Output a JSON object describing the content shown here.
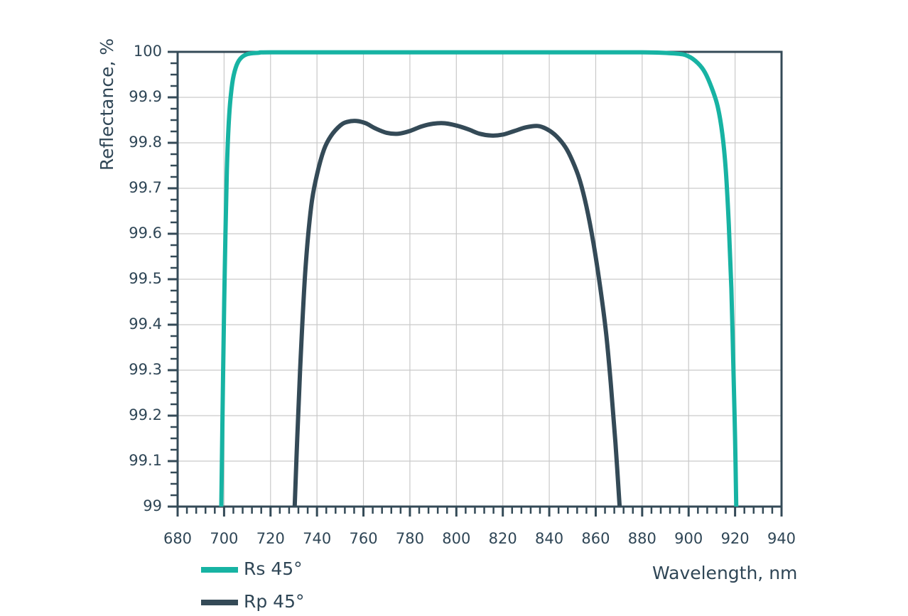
{
  "chart_data": {
    "type": "line",
    "xlabel": "Wavelength, nm",
    "ylabel": "Reflectance, %",
    "xlim": [
      680,
      940
    ],
    "xticks": [
      680,
      700,
      720,
      740,
      760,
      780,
      800,
      820,
      840,
      860,
      880,
      900,
      920,
      940
    ],
    "ylim": [
      99,
      100
    ],
    "yticks": [
      99,
      99.1,
      99.2,
      99.3,
      99.4,
      99.5,
      99.6,
      99.7,
      99.8,
      99.9,
      100
    ],
    "grid": true,
    "legend": "bottom-left",
    "series": [
      {
        "name": "Rs 45°",
        "color": "#17b3a3",
        "x": [
          698.8,
          699.6,
          700.3,
          701.2,
          702.2,
          703.5,
          705,
          707,
          710,
          715,
          720,
          760,
          800,
          840,
          880,
          895,
          900,
          904,
          907,
          910,
          912.5,
          914.5,
          916,
          917.3,
          918.4,
          919.3,
          920,
          920.5
        ],
        "values": [
          99,
          99.3,
          99.52,
          99.74,
          99.86,
          99.93,
          99.965,
          99.985,
          99.995,
          99.998,
          99.999,
          99.999,
          99.999,
          99.999,
          99.999,
          99.996,
          99.99,
          99.975,
          99.955,
          99.92,
          99.88,
          99.82,
          99.74,
          99.62,
          99.48,
          99.3,
          99.15,
          99
        ]
      },
      {
        "name": "Rp 45°",
        "color": "#344a57",
        "x": [
          730.4,
          731.5,
          733,
          735,
          737.5,
          740,
          743,
          746,
          750,
          753,
          757,
          761,
          765,
          770,
          775,
          780,
          785,
          790,
          795,
          800,
          805,
          810,
          815,
          820,
          825,
          830,
          835,
          839,
          843,
          847,
          850,
          853,
          856,
          859,
          862,
          864.5,
          866.5,
          868.5,
          870.3
        ],
        "values": [
          99,
          99.15,
          99.33,
          99.52,
          99.66,
          99.73,
          99.785,
          99.815,
          99.838,
          99.846,
          99.848,
          99.843,
          99.832,
          99.822,
          99.82,
          99.826,
          99.836,
          99.842,
          99.843,
          99.838,
          99.83,
          99.82,
          99.816,
          99.818,
          99.826,
          99.834,
          99.837,
          99.83,
          99.815,
          99.79,
          99.76,
          99.72,
          99.66,
          99.58,
          99.48,
          99.38,
          99.27,
          99.14,
          99
        ]
      }
    ]
  }
}
